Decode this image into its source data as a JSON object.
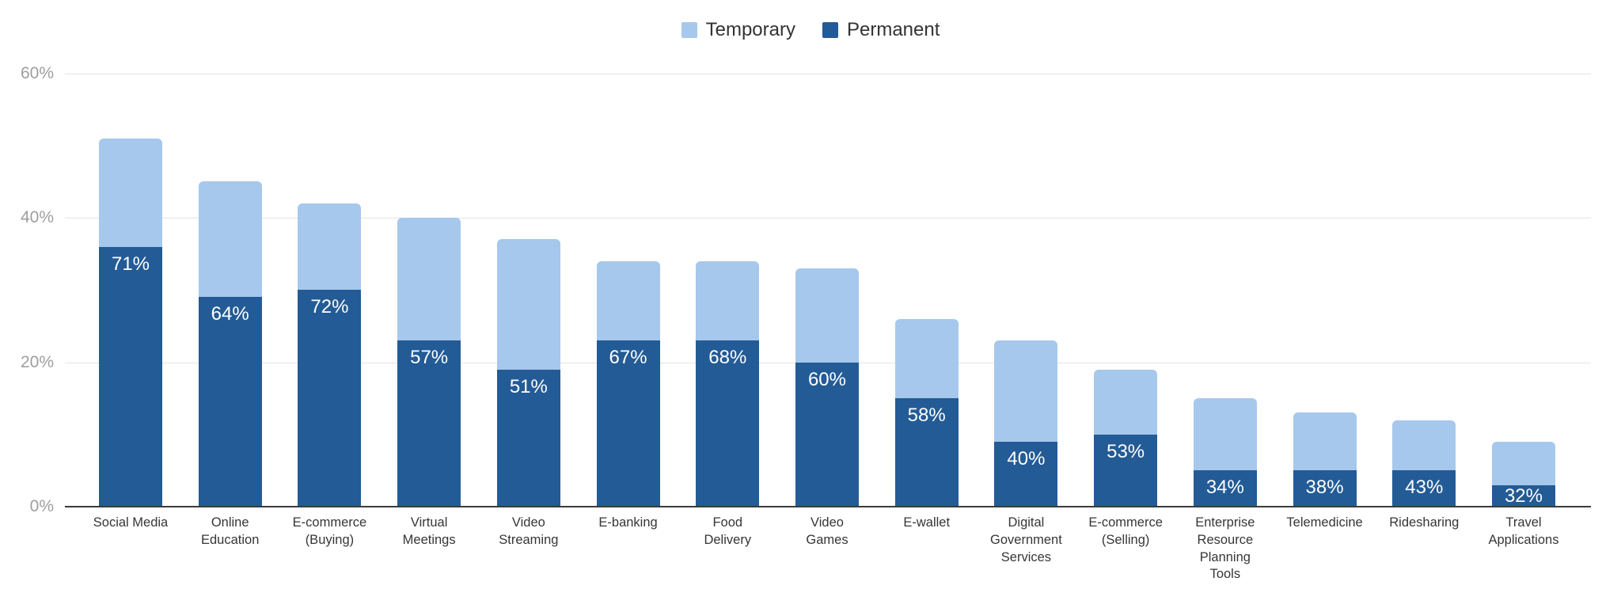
{
  "legend": [
    {
      "label": "Temporary",
      "color": "#a6c8ec"
    },
    {
      "label": "Permanent",
      "color": "#235b96"
    }
  ],
  "colors": {
    "temporary": "#a6c8ec",
    "permanent": "#235b96",
    "gridline": "#e3e3e3",
    "baseline": "#3b3b3b",
    "tick_text": "#9e9e9e",
    "category_text": "#363636",
    "bar_label_text": "#ffffff"
  },
  "y_axis": {
    "ticks": [
      {
        "value": 0,
        "label": "0%"
      },
      {
        "value": 20,
        "label": "20%"
      },
      {
        "value": 40,
        "label": "40%"
      },
      {
        "value": 60,
        "label": "60%"
      }
    ]
  },
  "chart_data": {
    "type": "bar",
    "stacked": true,
    "title": "",
    "xlabel": "",
    "ylabel": "",
    "ylim": [
      0,
      60
    ],
    "grid": true,
    "legend_position": "top-center",
    "categories": [
      "Social Media",
      "Online Education",
      "E-commerce (Buying)",
      "Virtual Meetings",
      "Video Streaming",
      "E-banking",
      "Food Delivery",
      "Video Games",
      "E-wallet",
      "Digital Government Services",
      "E-commerce (Selling)",
      "Enterprise Resource Planning Tools",
      "Telemedicine",
      "Ridesharing",
      "Travel Applications"
    ],
    "category_lines": [
      [
        "Social Media"
      ],
      [
        "Online",
        "Education"
      ],
      [
        "E-commerce",
        "(Buying)"
      ],
      [
        "Virtual",
        "Meetings"
      ],
      [
        "Video",
        "Streaming"
      ],
      [
        "E-banking"
      ],
      [
        "Food",
        "Delivery"
      ],
      [
        "Video",
        "Games"
      ],
      [
        "E-wallet"
      ],
      [
        "Digital",
        "Government",
        "Services"
      ],
      [
        "E-commerce",
        "(Selling)"
      ],
      [
        "Enterprise",
        "Resource",
        "Planning",
        "Tools"
      ],
      [
        "Telemedicine"
      ],
      [
        "Ridesharing"
      ],
      [
        "Travel",
        "Applications"
      ]
    ],
    "series": [
      {
        "name": "Permanent",
        "color": "#235b96",
        "values": [
          36,
          29,
          30,
          23,
          19,
          23,
          23,
          20,
          15,
          9,
          10,
          5,
          5,
          5,
          3
        ]
      },
      {
        "name": "Temporary",
        "color": "#a6c8ec",
        "values": [
          15,
          16,
          12,
          17,
          18,
          11,
          11,
          13,
          11,
          14,
          9,
          10,
          8,
          7,
          6
        ]
      }
    ],
    "totals": [
      51,
      45,
      42,
      40,
      37,
      34,
      34,
      33,
      26,
      23,
      19,
      15,
      13,
      12,
      9
    ],
    "bar_labels": [
      "71%",
      "64%",
      "72%",
      "57%",
      "51%",
      "67%",
      "68%",
      "60%",
      "58%",
      "40%",
      "53%",
      "34%",
      "38%",
      "43%",
      "32%"
    ]
  }
}
